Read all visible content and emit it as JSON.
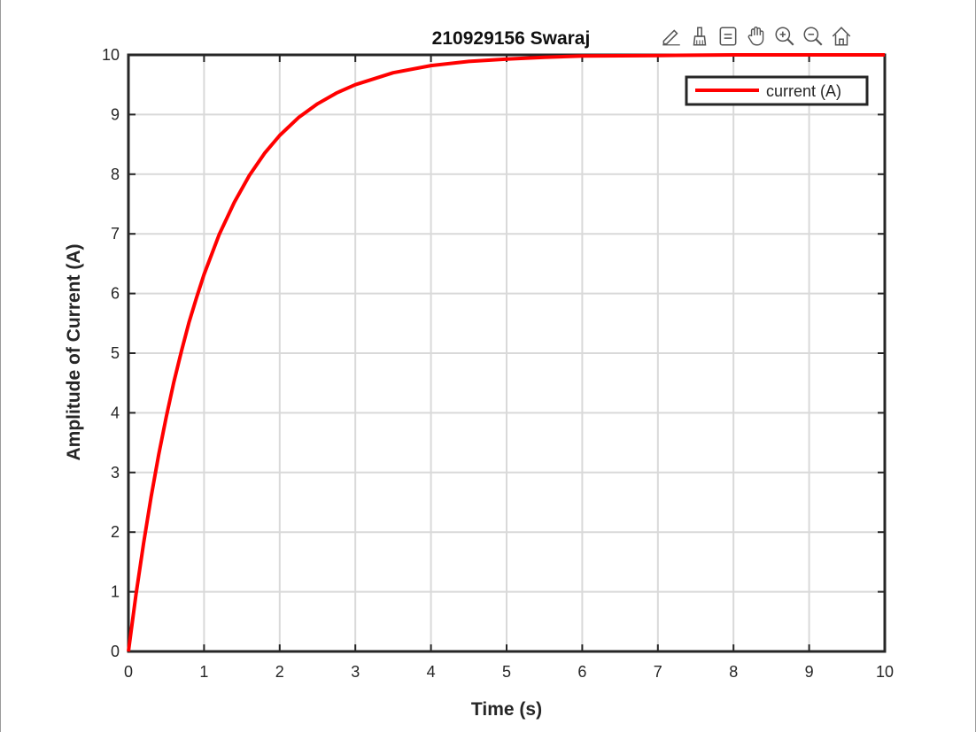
{
  "chart_data": {
    "type": "line",
    "title": "210929156 Swaraj",
    "xlabel": "Time (s)",
    "ylabel": "Amplitude of Current (A)",
    "xlim": [
      0,
      10
    ],
    "ylim": [
      0,
      10
    ],
    "xticks": [
      "0",
      "1",
      "2",
      "3",
      "4",
      "5",
      "6",
      "7",
      "8",
      "9",
      "10"
    ],
    "yticks": [
      "0",
      "1",
      "2",
      "3",
      "4",
      "5",
      "6",
      "7",
      "8",
      "9",
      "10"
    ],
    "grid": true,
    "legend_position": "top-right",
    "series": [
      {
        "name": "current (A)",
        "color": "#ff0000",
        "x": [
          0,
          0.1,
          0.2,
          0.3,
          0.4,
          0.5,
          0.6,
          0.7,
          0.8,
          0.9,
          1.0,
          1.2,
          1.4,
          1.6,
          1.8,
          2.0,
          2.25,
          2.5,
          2.75,
          3.0,
          3.5,
          4.0,
          4.5,
          5.0,
          5.5,
          6.0,
          7.0,
          8.0,
          9.0,
          10.0
        ],
        "y": [
          0,
          0.95,
          1.81,
          2.59,
          3.3,
          3.93,
          4.51,
          5.03,
          5.51,
          5.93,
          6.32,
          6.99,
          7.53,
          7.98,
          8.35,
          8.65,
          8.95,
          9.18,
          9.36,
          9.5,
          9.7,
          9.82,
          9.89,
          9.93,
          9.96,
          9.98,
          9.99,
          10.0,
          10.0,
          10.0
        ]
      }
    ]
  },
  "toolbar": {
    "icons": [
      "edit-icon",
      "brush-icon",
      "legend-icon",
      "pan-icon",
      "zoom-in-icon",
      "zoom-out-icon",
      "home-icon"
    ]
  }
}
